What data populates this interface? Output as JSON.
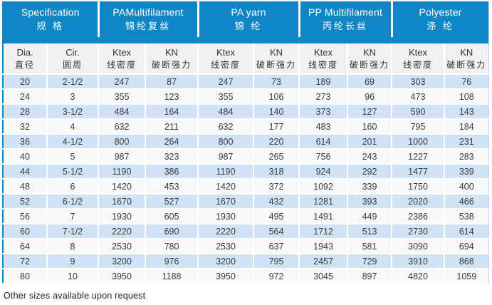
{
  "accent_color": "#1186c7",
  "row_alt_color": "#cfe3f4",
  "table": {
    "column_groups": [
      {
        "en": "Specification",
        "zh": "规 格"
      },
      {
        "en": "PAMultifilament",
        "zh": "锦纶复丝"
      },
      {
        "en": "PA yarn",
        "zh": "锦 纶"
      },
      {
        "en": "PP Multifilament",
        "zh": "丙纶长丝"
      },
      {
        "en": "Polyester",
        "zh": "涤 纶"
      }
    ],
    "sub_columns": [
      {
        "en": "Dia.",
        "zh": "直径"
      },
      {
        "en": "Cir.",
        "zh": "圆周"
      },
      {
        "en": "Ktex",
        "zh": "线密度"
      },
      {
        "en": "KN",
        "zh": "破断强力"
      },
      {
        "en": "Ktex",
        "zh": "线密度"
      },
      {
        "en": "KN",
        "zh": "破断强力"
      },
      {
        "en": "Ktex",
        "zh": "线密度"
      },
      {
        "en": "KN",
        "zh": "破断强力"
      },
      {
        "en": "Ktex",
        "zh": "线密度"
      },
      {
        "en": "KN",
        "zh": "破断强力"
      }
    ],
    "rows": [
      [
        "20",
        "2-1/2",
        "247",
        "87",
        "247",
        "73",
        "189",
        "69",
        "303",
        "76"
      ],
      [
        "24",
        "3",
        "355",
        "123",
        "355",
        "106",
        "273",
        "96",
        "473",
        "108"
      ],
      [
        "28",
        "3-1/2",
        "484",
        "164",
        "484",
        "140",
        "373",
        "127",
        "590",
        "143"
      ],
      [
        "32",
        "4",
        "632",
        "211",
        "632",
        "177",
        "483",
        "160",
        "795",
        "184"
      ],
      [
        "36",
        "4-1/2",
        "800",
        "264",
        "800",
        "220",
        "614",
        "201",
        "1000",
        "231"
      ],
      [
        "40",
        "5",
        "987",
        "323",
        "987",
        "265",
        "756",
        "243",
        "1227",
        "283"
      ],
      [
        "44",
        "5-1/2",
        "1190",
        "386",
        "1190",
        "318",
        "924",
        "292",
        "1477",
        "339"
      ],
      [
        "48",
        "6",
        "1420",
        "453",
        "1420",
        "372",
        "1092",
        "339",
        "1750",
        "400"
      ],
      [
        "52",
        "6-1/2",
        "1670",
        "527",
        "1670",
        "432",
        "1281",
        "393",
        "2020",
        "466"
      ],
      [
        "56",
        "7",
        "1930",
        "605",
        "1930",
        "495",
        "1491",
        "449",
        "2386",
        "538"
      ],
      [
        "60",
        "7-1/2",
        "2220",
        "690",
        "2220",
        "564",
        "1712",
        "513",
        "2730",
        "614"
      ],
      [
        "64",
        "8",
        "2530",
        "780",
        "2530",
        "637",
        "1943",
        "581",
        "3090",
        "694"
      ],
      [
        "72",
        "9",
        "3200",
        "976",
        "3200",
        "795",
        "2457",
        "729",
        "3910",
        "868"
      ],
      [
        "80",
        "10",
        "3950",
        "1188",
        "3950",
        "972",
        "3045",
        "897",
        "4820",
        "1059"
      ]
    ]
  },
  "footer": {
    "note": "Other sizes available upon request"
  }
}
